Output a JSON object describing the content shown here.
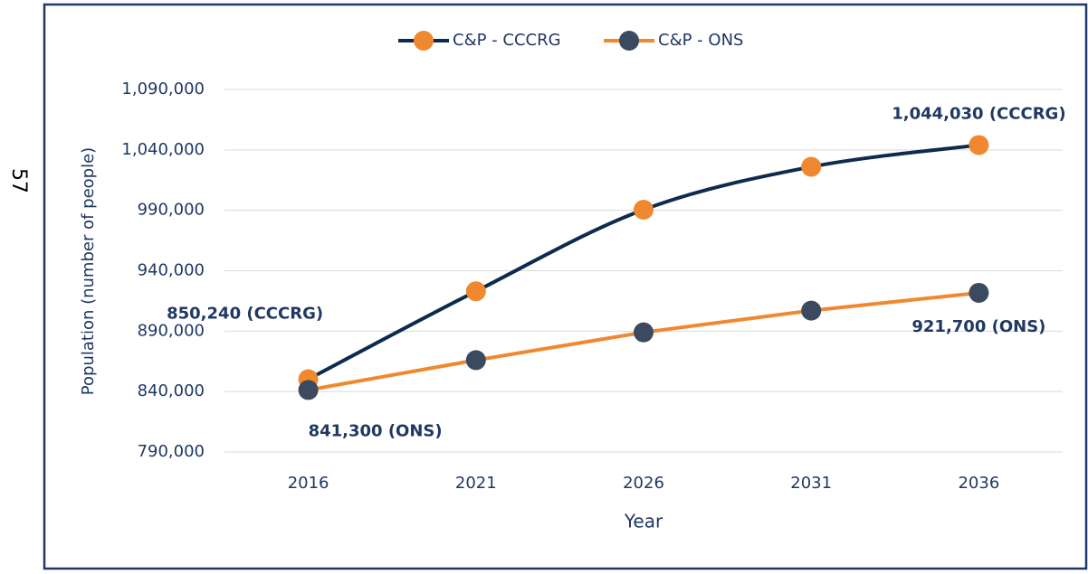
{
  "page_number": "57",
  "chart_data": {
    "type": "line",
    "categories": [
      "2016",
      "2021",
      "2026",
      "2031",
      "2036"
    ],
    "series": [
      {
        "name": "C&P - CCCRG",
        "color": "#0d2b4e",
        "marker_color": "#f0882f",
        "smooth": true,
        "values": [
          850240,
          923000,
          990500,
          1026000,
          1044030
        ],
        "value_labels": [
          "850,240 (CCCRG)",
          null,
          null,
          null,
          "1,044,030 (CCCRG)"
        ]
      },
      {
        "name": "C&P - ONS",
        "color": "#f0882f",
        "marker_color": "#3b4a5e",
        "smooth": false,
        "values": [
          841300,
          866000,
          889000,
          907000,
          921700
        ],
        "value_labels": [
          "841,300 (ONS)",
          null,
          null,
          null,
          "921,700 (ONS)"
        ]
      }
    ],
    "x_label": "Year",
    "y_label": "Population (number of people)",
    "ylim": [
      790000,
      1090000
    ],
    "yticks": [
      {
        "value": 790000,
        "label": "790,000"
      },
      {
        "value": 840000,
        "label": "840,000"
      },
      {
        "value": 890000,
        "label": "890,000"
      },
      {
        "value": 940000,
        "label": "940,000"
      },
      {
        "value": 990000,
        "label": "990,000"
      },
      {
        "value": 1040000,
        "label": "1,040,000"
      },
      {
        "value": 1090000,
        "label": "1,090,000"
      }
    ],
    "grid": true,
    "legend": "top"
  }
}
